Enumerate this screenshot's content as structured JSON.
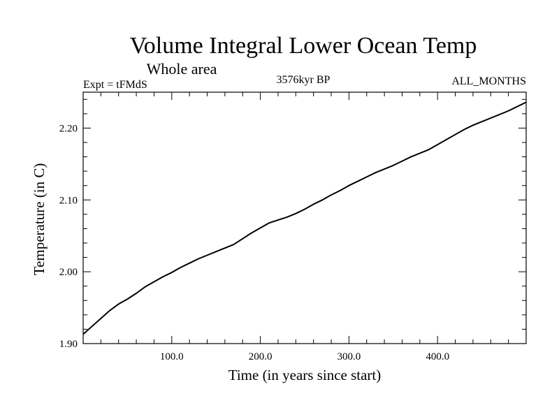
{
  "chart_data": {
    "type": "line",
    "title": "Volume Integral Lower Ocean Temp",
    "subtitle": "Whole area",
    "experiment_label": "Expt = tFMdS",
    "period_label": "3576kyr BP",
    "months_label": "ALL_MONTHS",
    "xlabel": "Time (in years since start)",
    "ylabel": "Temperature (in C)",
    "xlim": [
      0,
      500
    ],
    "ylim": [
      1.9,
      2.25
    ],
    "x_ticks": [
      100,
      200,
      300,
      400
    ],
    "x_tick_labels": [
      "100.0",
      "200.0",
      "300.0",
      "400.0"
    ],
    "y_ticks": [
      1.9,
      2.0,
      2.1,
      2.2
    ],
    "y_tick_labels": [
      "1.90",
      "2.00",
      "2.10",
      "2.20"
    ],
    "series": [
      {
        "name": "Lower Ocean Temp",
        "x": [
          0,
          10,
          20,
          30,
          40,
          50,
          60,
          70,
          80,
          90,
          100,
          110,
          120,
          130,
          140,
          150,
          160,
          170,
          180,
          190,
          200,
          210,
          220,
          230,
          240,
          250,
          260,
          270,
          280,
          290,
          300,
          310,
          320,
          330,
          340,
          350,
          360,
          370,
          380,
          390,
          400,
          410,
          420,
          430,
          440,
          450,
          460,
          470,
          480,
          490,
          500
        ],
        "y": [
          1.913,
          1.924,
          1.935,
          1.946,
          1.955,
          1.962,
          1.97,
          1.979,
          1.986,
          1.993,
          1.999,
          2.006,
          2.012,
          2.018,
          2.023,
          2.028,
          2.033,
          2.038,
          2.046,
          2.054,
          2.061,
          2.068,
          2.072,
          2.076,
          2.081,
          2.087,
          2.094,
          2.1,
          2.107,
          2.113,
          2.12,
          2.126,
          2.132,
          2.138,
          2.143,
          2.148,
          2.154,
          2.16,
          2.165,
          2.17,
          2.177,
          2.184,
          2.191,
          2.198,
          2.204,
          2.209,
          2.214,
          2.219,
          2.224,
          2.23,
          2.236
        ]
      }
    ]
  }
}
